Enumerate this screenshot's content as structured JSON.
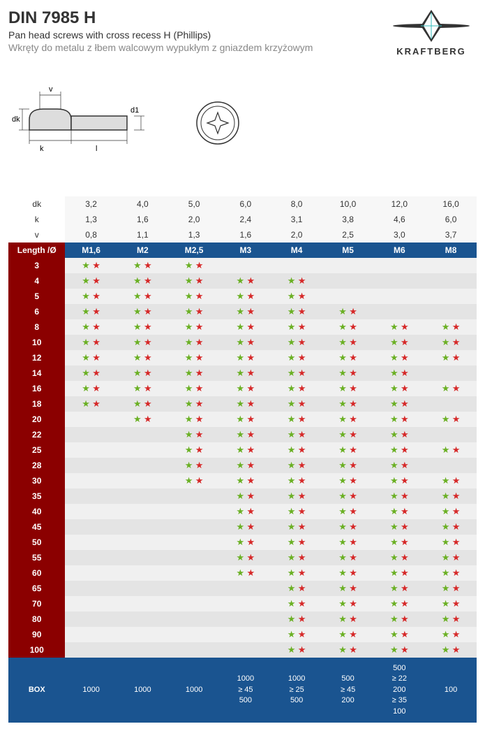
{
  "header": {
    "title": "DIN 7985 H",
    "subtitle_en": "Pan head screws with cross recess H (Phillips)",
    "subtitle_pl": "Wkręty do metalu z łbem walcowym wypukłym z gniazdem krzyżowym",
    "brand": "KRAFTBERG"
  },
  "diagram": {
    "labels": {
      "v": "v",
      "dk": "dk",
      "k": "k",
      "l": "l",
      "d1": "d1"
    }
  },
  "specs": {
    "params": [
      "dk",
      "k",
      "v"
    ],
    "values": {
      "dk": [
        "3,2",
        "4,0",
        "5,0",
        "6,0",
        "8,0",
        "10,0",
        "12,0",
        "16,0"
      ],
      "k": [
        "1,3",
        "1,6",
        "2,0",
        "2,4",
        "3,1",
        "3,8",
        "4,6",
        "6,0"
      ],
      "v": [
        "0,8",
        "1,1",
        "1,3",
        "1,6",
        "2,0",
        "2,5",
        "3,0",
        "3,7"
      ]
    }
  },
  "columns": [
    "M1,6",
    "M2",
    "M2,5",
    "M3",
    "M4",
    "M5",
    "M6",
    "M8"
  ],
  "length_header": "Length /Ø",
  "rows": [
    {
      "len": "3",
      "cells": [
        "gr",
        "gr",
        "gr",
        "",
        "",
        "",
        "",
        ""
      ]
    },
    {
      "len": "4",
      "cells": [
        "gr",
        "gr",
        "gr",
        "gr",
        "gr",
        "",
        "",
        ""
      ]
    },
    {
      "len": "5",
      "cells": [
        "gr",
        "gr",
        "gr",
        "gr",
        "gr",
        "",
        "",
        ""
      ]
    },
    {
      "len": "6",
      "cells": [
        "gr",
        "gr",
        "gr",
        "gr",
        "gr",
        "gr",
        "",
        ""
      ]
    },
    {
      "len": "8",
      "cells": [
        "gr",
        "gr",
        "gr",
        "gr",
        "gr",
        "gr",
        "gr",
        "gr"
      ]
    },
    {
      "len": "10",
      "cells": [
        "gr",
        "gr",
        "gr",
        "gr",
        "gr",
        "gr",
        "gr",
        "gr"
      ]
    },
    {
      "len": "12",
      "cells": [
        "gr",
        "gr",
        "gr",
        "gr",
        "gr",
        "gr",
        "gr",
        "gr"
      ]
    },
    {
      "len": "14",
      "cells": [
        "gr",
        "gr",
        "gr",
        "gr",
        "gr",
        "gr",
        "gr",
        ""
      ]
    },
    {
      "len": "16",
      "cells": [
        "gr",
        "gr",
        "gr",
        "gr",
        "gr",
        "gr",
        "gr",
        "gr"
      ]
    },
    {
      "len": "18",
      "cells": [
        "gr",
        "gr",
        "gr",
        "gr",
        "gr",
        "gr",
        "gr",
        ""
      ]
    },
    {
      "len": "20",
      "cells": [
        "",
        "gr",
        "gr",
        "gr",
        "gr",
        "gr",
        "gr",
        "gr"
      ]
    },
    {
      "len": "22",
      "cells": [
        "",
        "",
        "gr",
        "gr",
        "gr",
        "gr",
        "gr",
        ""
      ]
    },
    {
      "len": "25",
      "cells": [
        "",
        "",
        "gr",
        "gr",
        "gr",
        "gr",
        "gr",
        "gr"
      ]
    },
    {
      "len": "28",
      "cells": [
        "",
        "",
        "gr",
        "gr",
        "gr",
        "gr",
        "gr",
        ""
      ]
    },
    {
      "len": "30",
      "cells": [
        "",
        "",
        "gr",
        "gr",
        "gr",
        "gr",
        "gr",
        "gr"
      ]
    },
    {
      "len": "35",
      "cells": [
        "",
        "",
        "",
        "gr",
        "gr",
        "gr",
        "gr",
        "gr"
      ]
    },
    {
      "len": "40",
      "cells": [
        "",
        "",
        "",
        "gr",
        "gr",
        "gr",
        "gr",
        "gr"
      ]
    },
    {
      "len": "45",
      "cells": [
        "",
        "",
        "",
        "gr",
        "gr",
        "gr",
        "gr",
        "gr"
      ]
    },
    {
      "len": "50",
      "cells": [
        "",
        "",
        "",
        "gr",
        "gr",
        "gr",
        "gr",
        "gr"
      ]
    },
    {
      "len": "55",
      "cells": [
        "",
        "",
        "",
        "gr",
        "gr",
        "gr",
        "gr",
        "gr"
      ]
    },
    {
      "len": "60",
      "cells": [
        "",
        "",
        "",
        "gr",
        "gr",
        "gr",
        "gr",
        "gr"
      ]
    },
    {
      "len": "65",
      "cells": [
        "",
        "",
        "",
        "",
        "gr",
        "gr",
        "gr",
        "gr"
      ]
    },
    {
      "len": "70",
      "cells": [
        "",
        "",
        "",
        "",
        "gr",
        "gr",
        "gr",
        "gr"
      ]
    },
    {
      "len": "80",
      "cells": [
        "",
        "",
        "",
        "",
        "gr",
        "gr",
        "gr",
        "gr"
      ]
    },
    {
      "len": "90",
      "cells": [
        "",
        "",
        "",
        "",
        "gr",
        "gr",
        "gr",
        "gr"
      ]
    },
    {
      "len": "100",
      "cells": [
        "",
        "",
        "",
        "",
        "gr",
        "gr",
        "gr",
        "gr"
      ]
    }
  ],
  "box": {
    "label": "BOX",
    "values": [
      "1000",
      "1000",
      "1000",
      "1000\n≥ 45\n500",
      "1000\n≥ 25\n500",
      "500\n≥ 45\n200",
      "500\n≥ 22\n200\n≥ 35\n100",
      "100"
    ]
  },
  "colors": {
    "header_blue": "#1a5490",
    "length_red": "#8b0000",
    "star_green": "#6ab023",
    "star_red": "#d62828"
  }
}
